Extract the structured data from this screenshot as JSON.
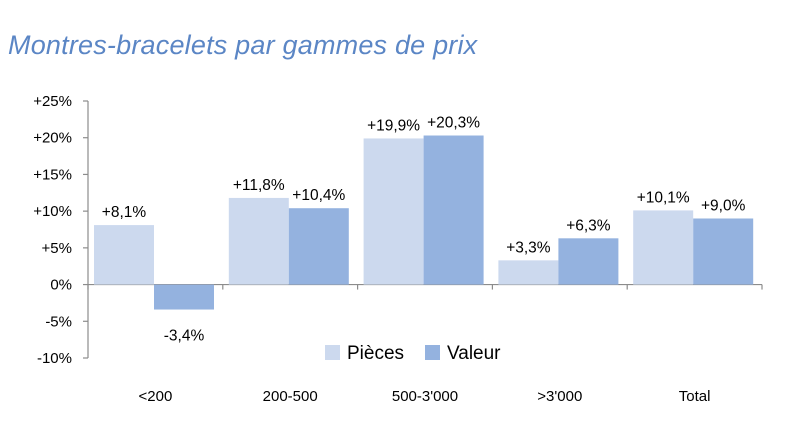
{
  "chart_data": {
    "type": "bar",
    "title": "Montres-bracelets par gammes de prix",
    "categories": [
      "<200",
      "200-500",
      "500-3'000",
      ">3'000",
      "Total"
    ],
    "series": [
      {
        "name": "Pièces",
        "values": [
          8.1,
          11.8,
          19.9,
          3.3,
          10.1
        ],
        "labels": [
          "+8,1%",
          "+11,8%",
          "+19,9%",
          "+3,3%",
          "+10,1%"
        ]
      },
      {
        "name": "Valeur",
        "values": [
          -3.4,
          10.4,
          20.3,
          6.3,
          9.0
        ],
        "labels": [
          "-3,4%",
          "+10,4%",
          "+20,3%",
          "+6,3%",
          "+9,0%"
        ]
      }
    ],
    "colors": [
      "#ccd9ee",
      "#94b2df"
    ],
    "ylim": [
      -10,
      25
    ],
    "yticks": [
      25,
      20,
      15,
      10,
      5,
      0,
      -5,
      -10
    ],
    "ytick_labels": [
      "+25%",
      "+20%",
      "+15%",
      "+10%",
      "+5%",
      "0%",
      "-5%",
      "-10%"
    ],
    "grid": false,
    "legend_position": "bottom-center"
  }
}
